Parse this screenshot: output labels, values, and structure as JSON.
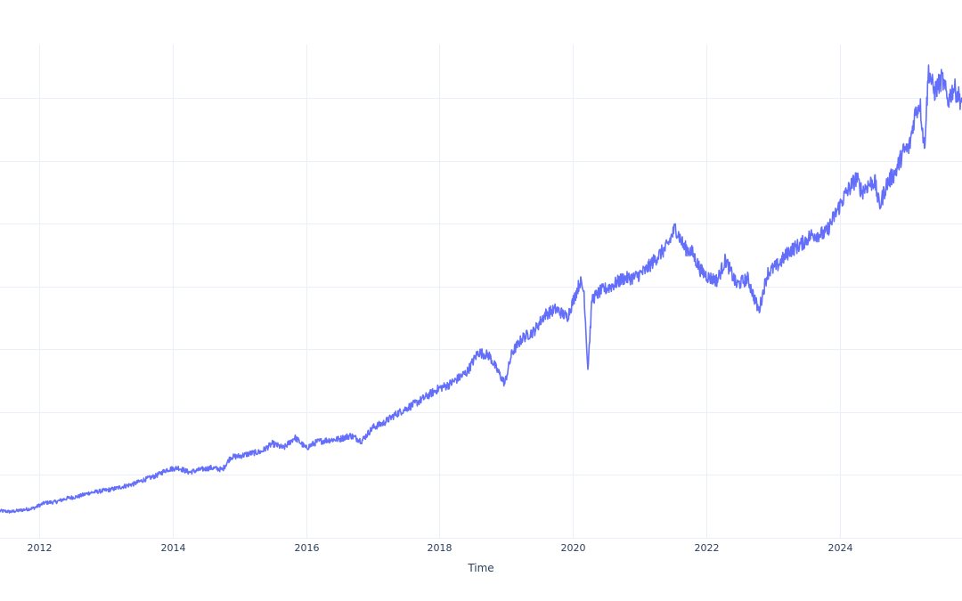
{
  "chart_data": {
    "type": "line",
    "xlabel": "Time",
    "ylabel": "",
    "title": "",
    "x_ticks": [
      "2012",
      "2014",
      "2016",
      "2018",
      "2020",
      "2022",
      "2024"
    ],
    "xlim": [
      "2011-06-01",
      "2025-10-31"
    ],
    "ylim": [
      0,
      55
    ],
    "y_gridlines": [
      7,
      14,
      21,
      28,
      35,
      42,
      49
    ],
    "grid": true,
    "legend": "none",
    "color": "#636efa",
    "series": [
      {
        "x": [
          "2011-06-01",
          "2011-08-01",
          "2011-10-01",
          "2011-12-01",
          "2012-02-01",
          "2012-04-01",
          "2012-06-01",
          "2012-08-01",
          "2012-10-01",
          "2012-12-01",
          "2013-02-01",
          "2013-04-01",
          "2013-06-01",
          "2013-08-01",
          "2013-10-01",
          "2013-12-01",
          "2014-02-01",
          "2014-04-01",
          "2014-06-01",
          "2014-08-01",
          "2014-10-01",
          "2014-11-15",
          "2015-01-01",
          "2015-03-01",
          "2015-05-01",
          "2015-07-01",
          "2015-09-01",
          "2015-11-01",
          "2016-01-01",
          "2016-03-01",
          "2016-05-01",
          "2016-07-01",
          "2016-09-01",
          "2016-11-01",
          "2017-01-01",
          "2017-03-01",
          "2017-05-01",
          "2017-07-01",
          "2017-09-01",
          "2017-11-01",
          "2018-01-01",
          "2018-02-15",
          "2018-04-01",
          "2018-06-01",
          "2018-08-01",
          "2018-10-01",
          "2018-11-15",
          "2018-12-24",
          "2019-02-01",
          "2019-04-01",
          "2019-06-01",
          "2019-08-01",
          "2019-10-01",
          "2019-12-01",
          "2020-02-10",
          "2020-03-02",
          "2020-03-23",
          "2020-04-15",
          "2020-06-01",
          "2020-08-01",
          "2020-10-01",
          "2020-12-01",
          "2021-02-01",
          "2021-04-01",
          "2021-06-01",
          "2021-07-15",
          "2021-09-01",
          "2021-10-15",
          "2021-12-01",
          "2022-01-15",
          "2022-03-01",
          "2022-04-15",
          "2022-06-15",
          "2022-08-15",
          "2022-10-01",
          "2022-10-15",
          "2022-12-01",
          "2023-02-01",
          "2023-04-01",
          "2023-06-01",
          "2023-08-01",
          "2023-10-15",
          "2023-12-01",
          "2024-02-01",
          "2024-04-01",
          "2024-05-01",
          "2024-06-01",
          "2024-07-10",
          "2024-08-05",
          "2024-09-15",
          "2024-11-01",
          "2024-12-15",
          "2025-01-15",
          "2025-02-15",
          "2025-03-15",
          "2025-04-08",
          "2025-05-01",
          "2025-06-01",
          "2025-07-15",
          "2025-08-15",
          "2025-09-15",
          "2025-10-31"
        ],
        "y": [
          3.0,
          2.9,
          3.1,
          3.3,
          3.9,
          4.0,
          4.4,
          4.6,
          5.0,
          5.2,
          5.4,
          5.7,
          6.0,
          6.5,
          6.9,
          7.6,
          7.8,
          7.3,
          7.6,
          7.8,
          7.6,
          9.0,
          9.1,
          9.4,
          9.6,
          10.5,
          10.0,
          11.2,
          10.0,
          10.7,
          10.9,
          11.0,
          11.4,
          10.8,
          12.3,
          12.8,
          13.7,
          14.4,
          15.1,
          15.9,
          16.7,
          17.0,
          17.6,
          18.5,
          20.7,
          20.3,
          18.6,
          17.2,
          20.6,
          22.3,
          23.0,
          24.9,
          25.5,
          24.6,
          28.6,
          27.4,
          18.8,
          26.6,
          27.5,
          28.1,
          28.9,
          29.0,
          29.8,
          31.2,
          32.5,
          34.6,
          32.4,
          31.8,
          29.8,
          29.0,
          28.7,
          31.0,
          28.2,
          28.9,
          26.1,
          25.3,
          29.5,
          30.5,
          32.0,
          32.7,
          33.8,
          33.9,
          35.8,
          38.3,
          40.1,
          38.6,
          39.3,
          39.8,
          36.9,
          39.5,
          40.8,
          43.1,
          43.5,
          47.2,
          48.5,
          43.4,
          52.1,
          49.7,
          51.2,
          48.7,
          50.2,
          48.6
        ]
      }
    ]
  }
}
